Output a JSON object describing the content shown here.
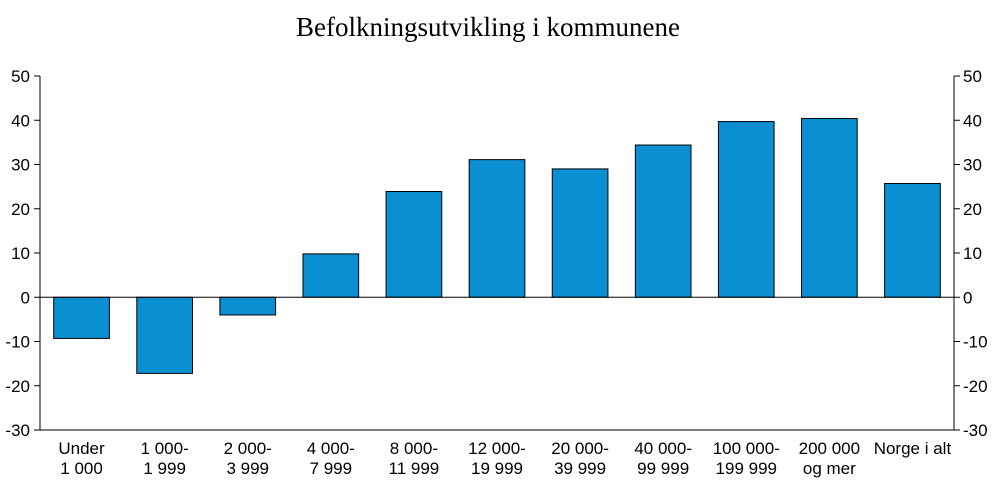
{
  "chart_data": {
    "type": "bar",
    "title": "Befolkningsutvikling i kommunene",
    "xlabel": "",
    "ylabel": "",
    "ylim": [
      -30,
      50
    ],
    "yticks": [
      -30,
      -20,
      -10,
      0,
      10,
      20,
      30,
      40,
      50
    ],
    "y_axes": "left and right",
    "grid": false,
    "categories": [
      [
        "Under",
        "1 000"
      ],
      [
        "1 000-",
        "1 999"
      ],
      [
        "2 000-",
        "3 999"
      ],
      [
        "4 000-",
        "7 999"
      ],
      [
        "8 000-",
        "11 999"
      ],
      [
        "12 000-",
        "19 999"
      ],
      [
        "20 000-",
        "39 999"
      ],
      [
        "40 000-",
        "99 999"
      ],
      [
        "100 000-",
        "199 999"
      ],
      [
        "200 000",
        "og mer"
      ],
      [
        "Norge i alt"
      ]
    ],
    "values": [
      -9.3,
      -17.2,
      -4.0,
      9.8,
      23.9,
      31.1,
      29.0,
      34.4,
      39.7,
      40.4,
      25.7
    ],
    "bar_color": "#0a8fd3",
    "bar_outline_color": "#000000"
  }
}
